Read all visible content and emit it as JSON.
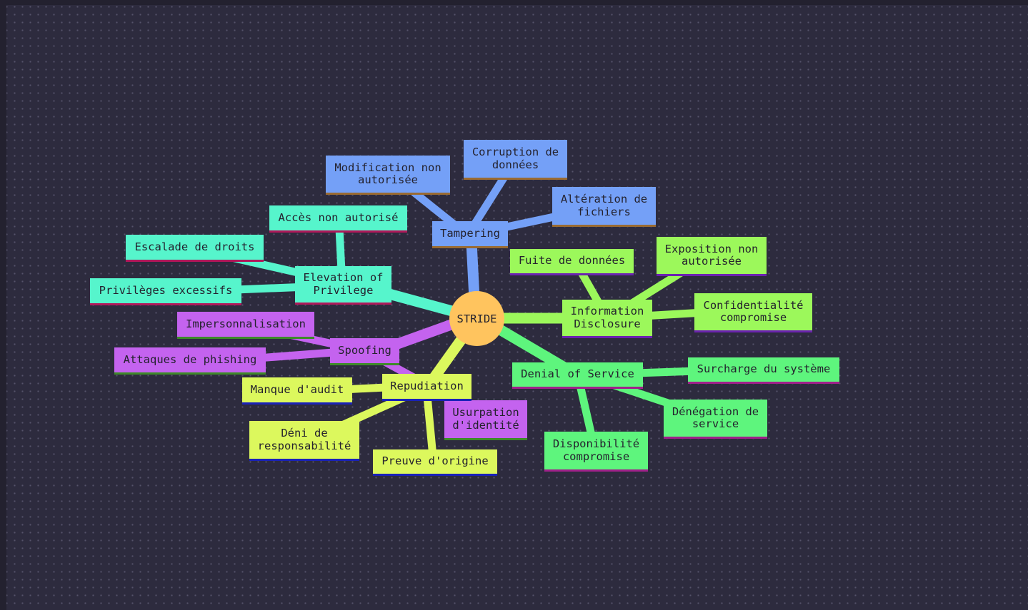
{
  "diagram": {
    "root": "STRIDE",
    "branches": {
      "tampering": {
        "label": "Tampering",
        "color": "#74a0f7",
        "children": [
          "Modification non\nautorisée",
          "Corruption de\ndonnées",
          "Altération de\nfichiers"
        ]
      },
      "elevation": {
        "label": "Elevation of\nPrivilege",
        "color": "#56f5cc",
        "children": [
          "Accès non autorisé",
          "Escalade de droits",
          "Privilèges excessifs"
        ]
      },
      "spoofing": {
        "label": "Spoofing",
        "color": "#c463ef",
        "children": [
          "Impersonnalisation",
          "Attaques de phishing",
          "Usurpation\nd'identité"
        ]
      },
      "repudiation": {
        "label": "Repudiation",
        "color": "#dcf85d",
        "children": [
          "Manque d'audit",
          "Déni de\nresponsabilité",
          "Preuve d'origine"
        ]
      },
      "information": {
        "label": "Information\nDisclosure",
        "color": "#9cf85b",
        "children": [
          "Fuite de données",
          "Exposition non\nautorisée",
          "Confidentialité\ncompromise"
        ]
      },
      "denial": {
        "label": "Denial of Service",
        "color": "#5ef57d",
        "children": [
          "Surcharge du système",
          "Dénégation de\nservice",
          "Disponibilité\ncompromise"
        ]
      }
    },
    "colors": {
      "background": "#2d2b3e",
      "root": "#ffc45e"
    }
  }
}
